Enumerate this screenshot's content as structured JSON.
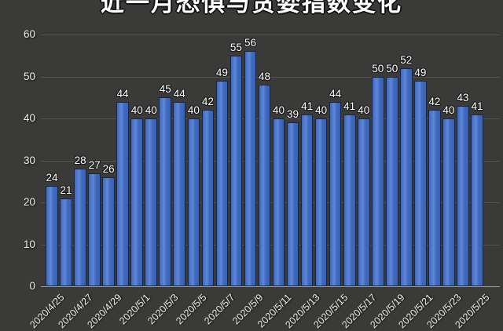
{
  "chart_data": {
    "type": "bar",
    "title": "近一月恐惧与贪婪指数变化",
    "categories": [
      "2020/4/25",
      "2020/4/26",
      "2020/4/27",
      "2020/4/28",
      "2020/4/29",
      "2020/4/30",
      "2020/5/1",
      "2020/5/2",
      "2020/5/3",
      "2020/5/4",
      "2020/5/5",
      "2020/5/6",
      "2020/5/7",
      "2020/5/8",
      "2020/5/9",
      "2020/5/10",
      "2020/5/11",
      "2020/5/12",
      "2020/5/13",
      "2020/5/14",
      "2020/5/15",
      "2020/5/16",
      "2020/5/17",
      "2020/5/18",
      "2020/5/19",
      "2020/5/20",
      "2020/5/21",
      "2020/5/22",
      "2020/5/23",
      "2020/5/24",
      "2020/5/25"
    ],
    "values": [
      24,
      21,
      28,
      27,
      26,
      44,
      40,
      40,
      45,
      44,
      40,
      42,
      49,
      55,
      56,
      48,
      40,
      39,
      41,
      40,
      44,
      41,
      40,
      50,
      50,
      52,
      49,
      42,
      40,
      43,
      41
    ],
    "x_tick_labels": [
      "2020/4/25",
      "2020/4/27",
      "2020/4/29",
      "2020/5/1",
      "2020/5/3",
      "2020/5/5",
      "2020/5/7",
      "2020/5/9",
      "2020/5/11",
      "2020/5/13",
      "2020/5/15",
      "2020/5/17",
      "2020/5/19",
      "2020/5/21",
      "2020/5/23",
      "2020/5/25"
    ],
    "x_tick_every": 2,
    "y_ticks": [
      0,
      10,
      20,
      30,
      40,
      50,
      60
    ],
    "ylim": [
      0,
      60
    ],
    "grid": true,
    "legend": "none",
    "xlabel": "",
    "ylabel": "",
    "colors": {
      "bar_fill": "#4069bd",
      "bar_fill_light": "#5e87da",
      "bar_fill_dark": "#3a62b2",
      "bar_border": "#152647",
      "value_label": "#ffffff",
      "axis_text": "#ededed",
      "title_text": "#ffffff",
      "background_center": "#4e4e4c",
      "background_edge": "#232321",
      "gridline": "rgba(255,255,255,0.13)"
    }
  }
}
